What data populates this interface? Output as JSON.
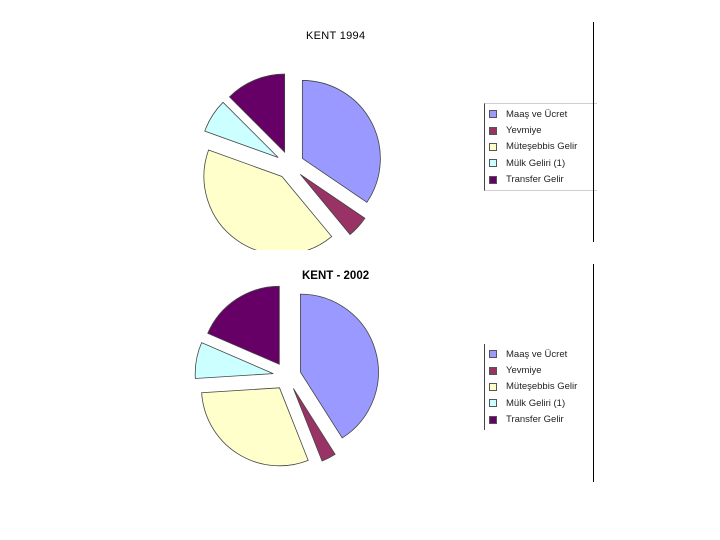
{
  "chart_data": [
    {
      "type": "pie",
      "title": "KENT  1994",
      "categories": [
        "Maaş ve Ücret",
        "Yevmiye",
        "Müteşebbis Gelir",
        "Mülk Geliri (1)",
        "Transfer Gelir"
      ],
      "values": [
        34.5,
        4.5,
        41.5,
        7.0,
        12.5
      ],
      "colors": [
        "#9999ff",
        "#993366",
        "#ffffcc",
        "#ccffff",
        "#660066"
      ],
      "legend_position": "right"
    },
    {
      "type": "pie",
      "title": "KENT - 2002",
      "categories": [
        "Maaş ve Ücret",
        "Yevmiye",
        "Müteşebbis Gelir",
        "Mülk Geliri (1)",
        "Transfer Gelir"
      ],
      "values": [
        41.0,
        3.0,
        30.0,
        7.5,
        18.5
      ],
      "colors": [
        "#9999ff",
        "#993366",
        "#ffffcc",
        "#ccffff",
        "#660066"
      ],
      "legend_position": "right"
    }
  ]
}
